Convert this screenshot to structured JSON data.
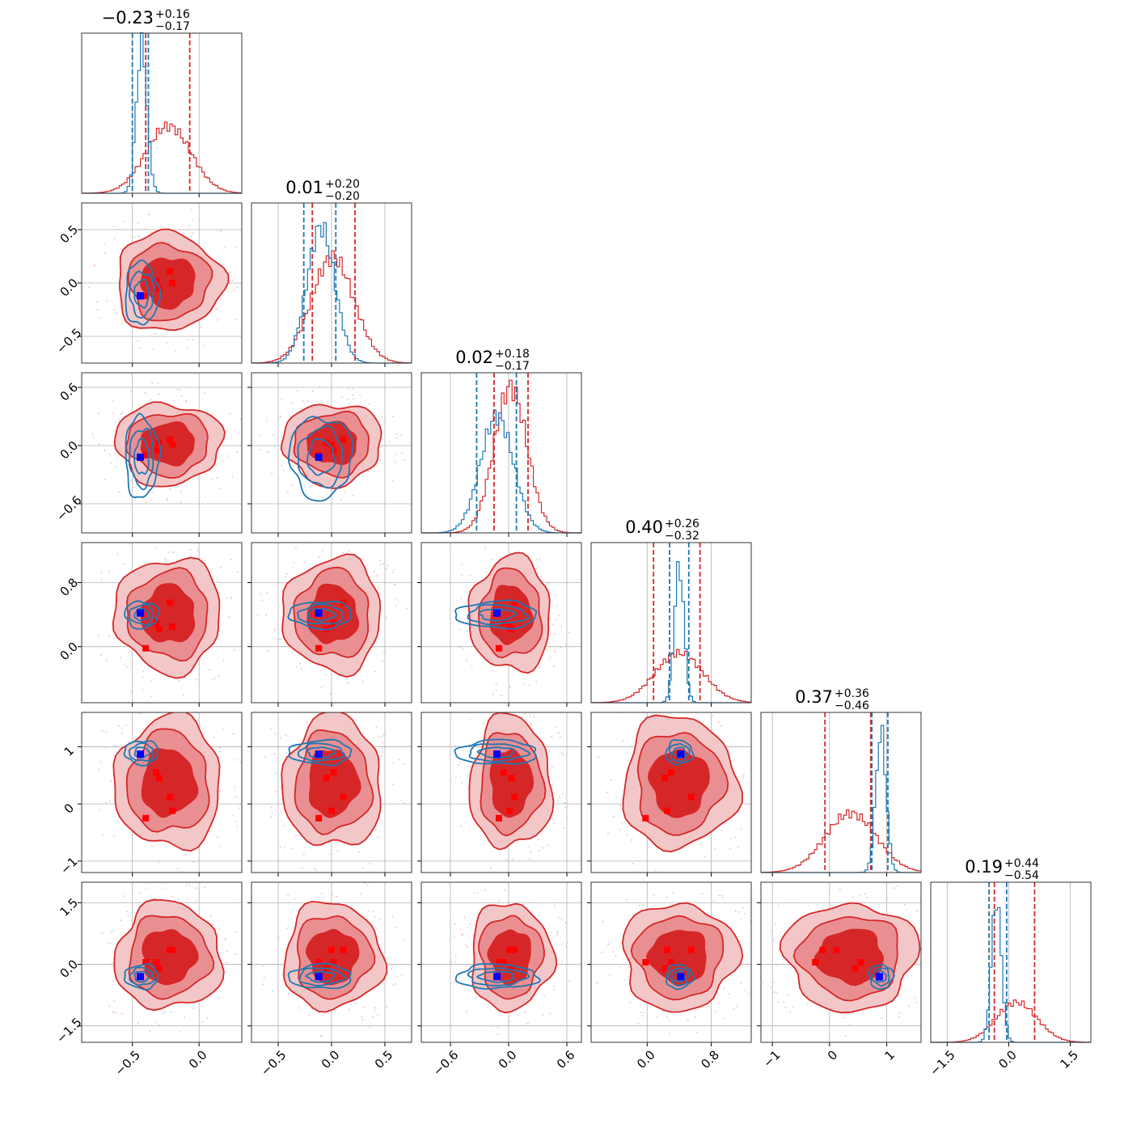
{
  "chart_data": {
    "type": "corner",
    "grid": true,
    "n_params": 6,
    "titles": [
      {
        "median": "−0.23",
        "plus": "+0.16",
        "minus": "−0.17"
      },
      {
        "median": "0.01",
        "plus": "+0.20",
        "minus": "−0.20"
      },
      {
        "median": "0.02",
        "plus": "+0.18",
        "minus": "−0.17"
      },
      {
        "median": "0.40",
        "plus": "+0.26",
        "minus": "−0.32"
      },
      {
        "median": "0.37",
        "plus": "+0.36",
        "minus": "−0.46"
      },
      {
        "median": "0.19",
        "plus": "+0.44",
        "minus": "−0.54"
      }
    ],
    "params": [
      {
        "range": [
          -0.88,
          0.32
        ],
        "ticks": [
          -0.5,
          0.0
        ],
        "tick_labels": [
          "−0.5",
          "0.0"
        ],
        "y_ticks": [],
        "y_tick_labels": []
      },
      {
        "range": [
          -0.75,
          0.75
        ],
        "ticks": [
          -0.5,
          0.0,
          0.5
        ],
        "tick_labels": [
          "−0.5",
          "0.0",
          "0.5"
        ],
        "y_ticks": [
          -0.5,
          0.0,
          0.5
        ],
        "y_tick_labels": [
          "−0.5",
          "0.0",
          "0.5"
        ]
      },
      {
        "range": [
          -0.9,
          0.75
        ],
        "ticks": [
          -0.6,
          0.0,
          0.6
        ],
        "tick_labels": [
          "−0.6",
          "0.0",
          "0.6"
        ],
        "y_ticks": [
          -0.6,
          0.0,
          0.6
        ],
        "y_tick_labels": [
          "−0.6",
          "0.0",
          "0.6"
        ]
      },
      {
        "range": [
          -0.7,
          1.3
        ],
        "ticks": [
          0.0,
          0.8
        ],
        "tick_labels": [
          "0.0",
          "0.8"
        ],
        "y_ticks": [
          0.0,
          0.8
        ],
        "y_tick_labels": [
          "0.0",
          "0.8"
        ]
      },
      {
        "range": [
          -1.2,
          1.6
        ],
        "ticks": [
          -1,
          0,
          1
        ],
        "tick_labels": [
          "−1",
          "0",
          "1"
        ],
        "y_ticks": [
          -1,
          0,
          1
        ],
        "y_tick_labels": [
          "−1",
          "0",
          "1"
        ]
      },
      {
        "range": [
          -1.9,
          2.0
        ],
        "ticks": [
          -1.5,
          0.0,
          1.5
        ],
        "tick_labels": [
          "−1.5",
          "0.0",
          "1.5"
        ],
        "y_ticks": [
          -1.5,
          0.0,
          1.5
        ],
        "y_tick_labels": [
          "−1.5",
          "0.0",
          "1.5"
        ]
      }
    ],
    "series": [
      {
        "color": "#d62728",
        "fill_colors": [
          "#f3c7c8",
          "#e98f91",
          "#d62728"
        ],
        "hist_center": [
          -0.23,
          0.01,
          0.02,
          0.4,
          0.37,
          0.19
        ],
        "hist_sigma": [
          0.17,
          0.2,
          0.17,
          0.3,
          0.45,
          0.5
        ],
        "hist_peak": [
          0.42,
          0.66,
          0.91,
          0.31,
          0.37,
          0.25
        ],
        "quantiles": [
          [
            -0.4,
            -0.07
          ],
          [
            -0.18,
            0.22
          ],
          [
            -0.15,
            0.2
          ],
          [
            0.08,
            0.66
          ],
          [
            -0.08,
            0.72
          ],
          [
            -0.35,
            0.63
          ]
        ],
        "contour_sigma": [
          0.19,
          0.22,
          0.2,
          0.34,
          0.55,
          0.62
        ],
        "points": [
          [
            -0.4,
            -0.12,
            -0.1,
            -0.02,
            -0.25,
            0.05
          ],
          [
            -0.32,
            0.02,
            -0.05,
            0.3,
            0.55,
            0.05
          ],
          [
            -0.3,
            -0.05,
            0.03,
            0.22,
            0.45,
            -0.1
          ],
          [
            -0.22,
            0.11,
            0.06,
            0.55,
            0.12,
            0.35
          ],
          [
            -0.2,
            0.0,
            0.01,
            0.25,
            -0.12,
            0.35
          ]
        ]
      },
      {
        "color": "#1f77b4",
        "hist_center": [
          -0.43,
          -0.1,
          -0.12,
          0.4,
          0.9,
          -0.3
        ],
        "hist_sigma": [
          0.04,
          0.13,
          0.17,
          0.06,
          0.09,
          0.12
        ],
        "hist_peak": [
          0.93,
          0.85,
          0.73,
          0.86,
          0.88,
          0.9
        ],
        "quantiles": [
          [
            -0.5,
            -0.38
          ],
          [
            -0.26,
            0.04
          ],
          [
            -0.33,
            0.08
          ],
          [
            0.28,
            0.52
          ],
          [
            0.74,
            1.02
          ],
          [
            -0.48,
            -0.05
          ]
        ],
        "contour_sigma": [
          0.06,
          0.14,
          0.2,
          0.08,
          0.1,
          0.14
        ],
        "marker": [
          -0.44,
          -0.12,
          -0.12,
          0.42,
          0.87,
          -0.3
        ]
      }
    ]
  }
}
